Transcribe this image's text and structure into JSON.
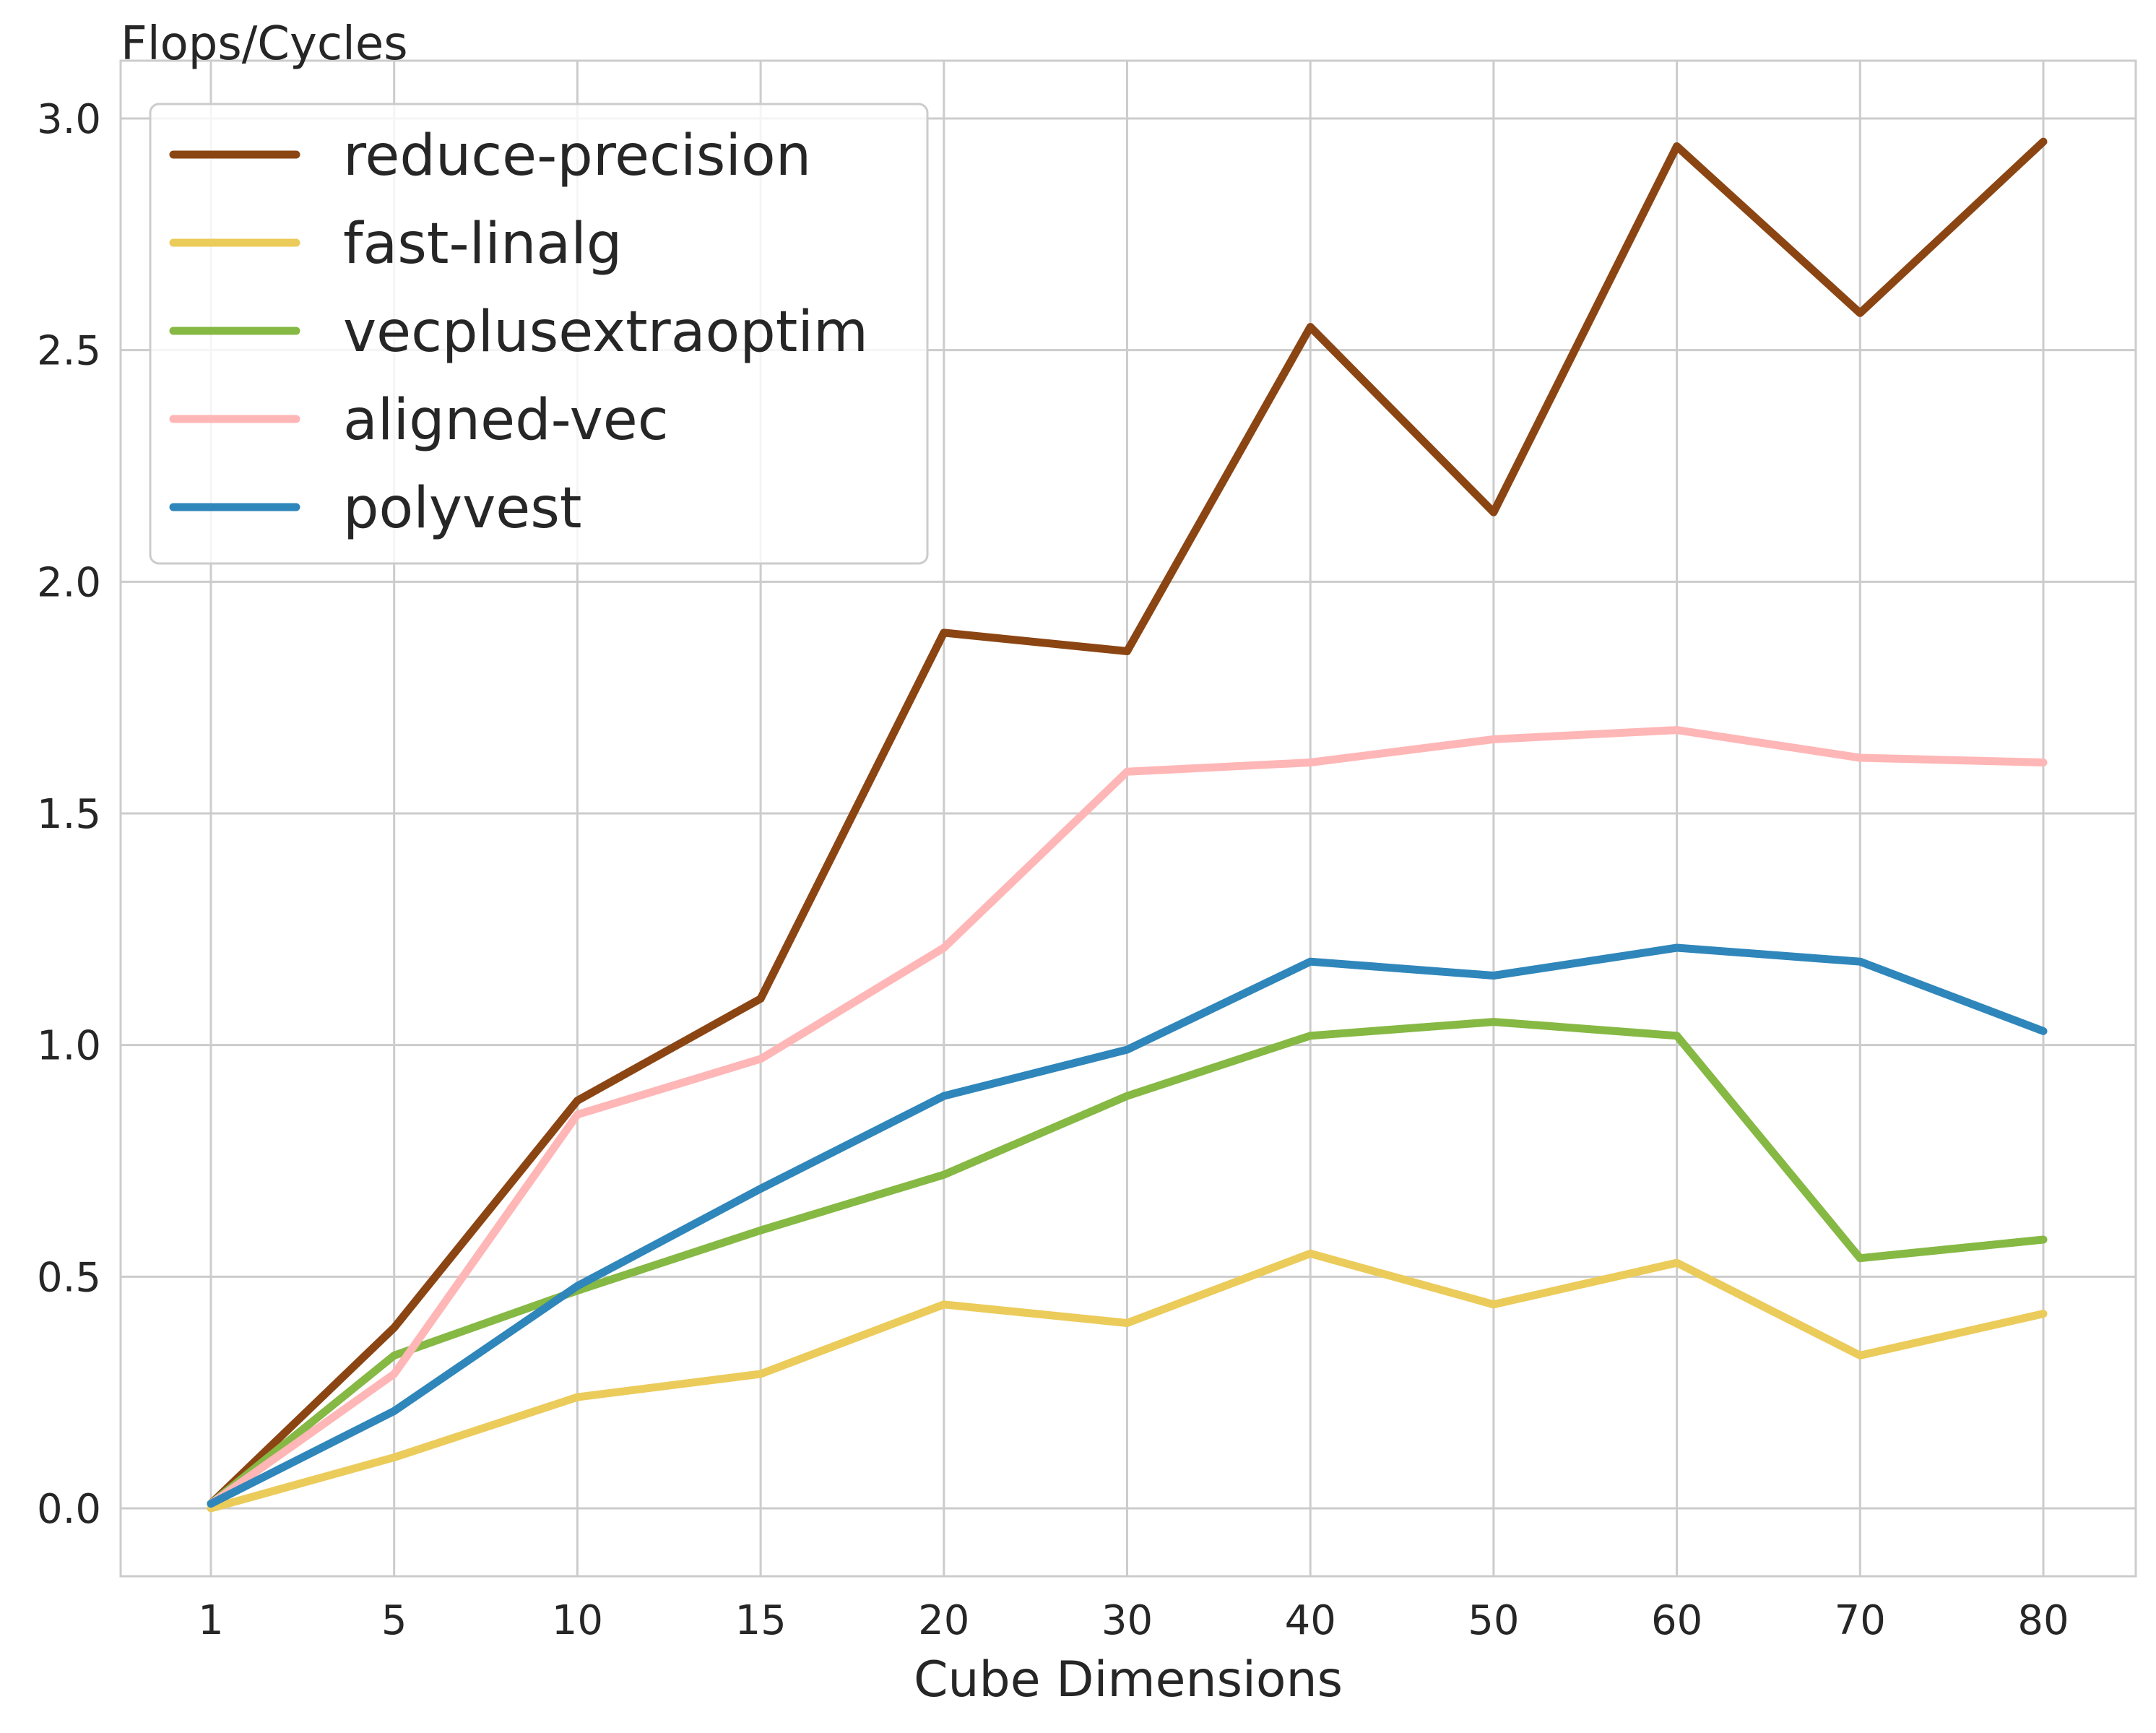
{
  "chart_data": {
    "type": "line",
    "ylabel": "Flops/Cycles",
    "xlabel": "Cube Dimensions",
    "categories": [
      "1",
      "5",
      "10",
      "15",
      "20",
      "30",
      "40",
      "50",
      "60",
      "70",
      "80"
    ],
    "ylim": [
      -0.15,
      3.1
    ],
    "yticks": [
      "0.0",
      "0.5",
      "1.0",
      "1.5",
      "2.0",
      "2.5",
      "3.0"
    ],
    "yticks_values": [
      0.0,
      0.5,
      1.0,
      1.5,
      2.0,
      2.5,
      3.0
    ],
    "grid": true,
    "legend_position": "top-left",
    "series": [
      {
        "name": "reduce-precision",
        "color": "#8B4513",
        "values": [
          0.01,
          0.39,
          0.88,
          1.1,
          1.89,
          1.85,
          2.55,
          2.15,
          2.94,
          2.58,
          2.95
        ]
      },
      {
        "name": "fast-linalg",
        "color": "#EBCB5A",
        "values": [
          0.0,
          0.11,
          0.24,
          0.29,
          0.44,
          0.4,
          0.55,
          0.44,
          0.53,
          0.33,
          0.42
        ]
      },
      {
        "name": "vecplusextraoptim",
        "color": "#86B844",
        "values": [
          0.01,
          0.33,
          0.47,
          0.6,
          0.72,
          0.89,
          1.02,
          1.05,
          1.02,
          0.54,
          0.58
        ]
      },
      {
        "name": "aligned-vec",
        "color": "#FFB6B6",
        "values": [
          0.01,
          0.29,
          0.85,
          0.97,
          1.21,
          1.59,
          1.61,
          1.66,
          1.68,
          1.62,
          1.61
        ]
      },
      {
        "name": "polyvest",
        "color": "#2F86BA",
        "values": [
          0.01,
          0.21,
          0.48,
          0.69,
          0.89,
          0.99,
          1.18,
          1.15,
          1.21,
          1.18,
          1.03
        ]
      }
    ]
  }
}
